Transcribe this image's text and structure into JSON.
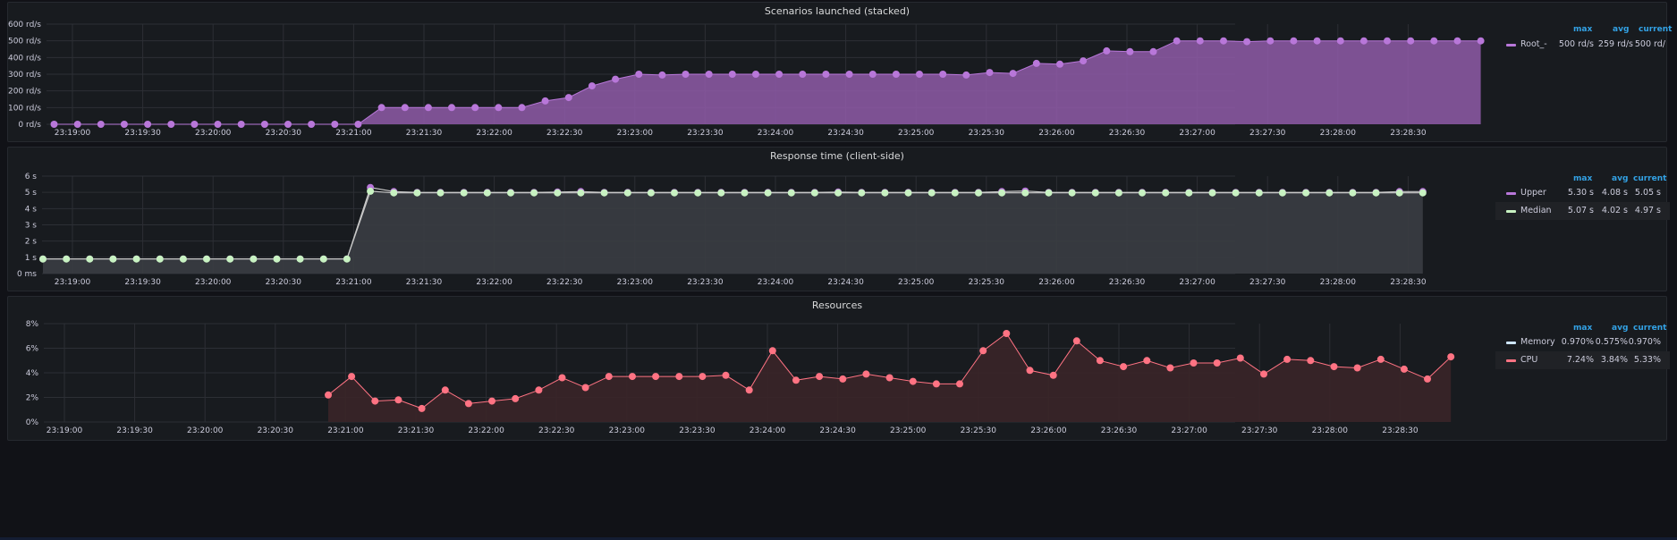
{
  "chart_data": [
    {
      "type": "area",
      "title": "Scenarios launched (stacked)",
      "y_ticks": [
        "0 rd/s",
        "100 rd/s",
        "200 rd/s",
        "300 rd/s",
        "400 rd/s",
        "500 rd/s",
        "600 rd/s"
      ],
      "ylim": [
        0,
        600
      ],
      "x_ticks": [
        "23:19:00",
        "23:19:30",
        "23:20:00",
        "23:20:30",
        "23:21:00",
        "23:21:30",
        "23:22:00",
        "23:22:30",
        "23:23:00",
        "23:23:30",
        "23:24:00",
        "23:24:30",
        "23:25:00",
        "23:25:30",
        "23:26:00",
        "23:26:30",
        "23:27:00",
        "23:27:30",
        "23:28:00",
        "23:28:30"
      ],
      "x_start": "23:18:45",
      "x_step_seconds": 10,
      "legend_headers": {
        "max": "max",
        "avg": "avg",
        "current": "current"
      },
      "series": [
        {
          "name": "Root_-",
          "color": "#b877d9",
          "fill": "#8f5aa8",
          "stats": {
            "max": "500 rd/s",
            "avg": "259 rd/s",
            "current": "500 rd/"
          },
          "values": [
            0,
            0,
            0,
            0,
            0,
            0,
            0,
            0,
            0,
            0,
            0,
            0,
            0,
            0,
            100,
            100,
            100,
            100,
            100,
            100,
            100,
            140,
            160,
            230,
            270,
            300,
            295,
            300,
            300,
            300,
            300,
            300,
            300,
            300,
            300,
            300,
            300,
            300,
            300,
            295,
            310,
            305,
            365,
            360,
            380,
            440,
            435,
            435,
            500,
            500,
            500,
            495,
            500,
            500,
            500,
            500,
            500,
            500,
            500,
            500,
            500,
            500
          ]
        }
      ]
    },
    {
      "type": "line",
      "title": "Response time (client-side)",
      "y_ticks": [
        "0 ms",
        "1 s",
        "2 s",
        "3 s",
        "4 s",
        "5 s",
        "6 s"
      ],
      "ylim": [
        0,
        6
      ],
      "x_ticks": [
        "23:19:00",
        "23:19:30",
        "23:20:00",
        "23:20:30",
        "23:21:00",
        "23:21:30",
        "23:22:00",
        "23:22:30",
        "23:23:00",
        "23:23:30",
        "23:24:00",
        "23:24:30",
        "23:25:00",
        "23:25:30",
        "23:26:00",
        "23:26:30",
        "23:27:00",
        "23:27:30",
        "23:28:00",
        "23:28:30"
      ],
      "legend_headers": {
        "max": "max",
        "avg": "avg",
        "current": "current"
      },
      "series": [
        {
          "name": "Upper",
          "color": "#b877d9",
          "stats": {
            "max": "5.30 s",
            "avg": "4.08 s",
            "current": "5.05 s"
          },
          "values": [
            0.9,
            0.9,
            0.9,
            0.9,
            0.9,
            0.9,
            0.9,
            0.9,
            0.9,
            0.9,
            0.9,
            0.9,
            0.9,
            0.9,
            5.3,
            5.05,
            5.0,
            5.0,
            5.0,
            5.0,
            5.0,
            5.0,
            5.02,
            5.05,
            5.0,
            5.0,
            5.0,
            5.0,
            5.0,
            5.0,
            5.0,
            5.0,
            5.0,
            5.0,
            5.02,
            5.0,
            5.0,
            5.0,
            5.0,
            5.0,
            5.0,
            5.05,
            5.08,
            5.0,
            5.0,
            5.0,
            5.0,
            5.0,
            5.0,
            5.0,
            5.0,
            5.0,
            5.0,
            5.0,
            5.0,
            5.0,
            5.0,
            5.0,
            5.05,
            5.05
          ]
        },
        {
          "name": "Median",
          "color": "#c8f2c2",
          "stats": {
            "max": "5.07 s",
            "avg": "4.02 s",
            "current": "4.97 s"
          },
          "values": [
            0.9,
            0.9,
            0.9,
            0.9,
            0.9,
            0.9,
            0.9,
            0.9,
            0.9,
            0.9,
            0.9,
            0.9,
            0.9,
            0.9,
            5.07,
            4.97,
            4.97,
            4.97,
            4.97,
            4.97,
            4.97,
            4.97,
            4.97,
            4.97,
            4.97,
            4.97,
            4.97,
            4.97,
            4.97,
            4.97,
            4.97,
            4.97,
            4.97,
            4.97,
            4.97,
            4.97,
            4.97,
            4.97,
            4.97,
            4.97,
            4.97,
            4.97,
            4.97,
            4.97,
            4.97,
            4.97,
            4.97,
            4.97,
            4.97,
            4.97,
            4.97,
            4.97,
            4.97,
            4.97,
            4.97,
            4.97,
            4.97,
            4.97,
            4.97,
            4.97
          ]
        }
      ]
    },
    {
      "type": "line",
      "title": "Resources",
      "y_ticks": [
        "0%",
        "2%",
        "4%",
        "6%",
        "8%"
      ],
      "ylim": [
        0,
        8
      ],
      "x_ticks": [
        "23:19:00",
        "23:19:30",
        "23:20:00",
        "23:20:30",
        "23:21:00",
        "23:21:30",
        "23:22:00",
        "23:22:30",
        "23:23:00",
        "23:23:30",
        "23:24:00",
        "23:24:30",
        "23:25:00",
        "23:25:30",
        "23:26:00",
        "23:26:30",
        "23:27:00",
        "23:27:30",
        "23:28:00",
        "23:28:30"
      ],
      "legend_headers": {
        "max": "max",
        "avg": "avg",
        "current": "current"
      },
      "series": [
        {
          "name": "Memory",
          "color": "#cde5ff",
          "stats": {
            "max": "0.970%",
            "avg": "0.575%",
            "current": "0.970%"
          },
          "values": []
        },
        {
          "name": "CPU",
          "color": "#ff7383",
          "fill": "#3a2528",
          "stats": {
            "max": "7.24%",
            "avg": "3.84%",
            "current": "5.33%"
          },
          "values": [
            2.2,
            3.7,
            1.7,
            1.8,
            1.1,
            2.6,
            1.5,
            1.7,
            1.9,
            2.6,
            3.6,
            2.8,
            3.7,
            3.7,
            3.7,
            3.7,
            3.7,
            3.8,
            2.6,
            5.8,
            3.4,
            3.7,
            3.5,
            3.9,
            3.6,
            3.3,
            3.1,
            3.1,
            5.8,
            7.2,
            4.2,
            3.8,
            6.6,
            5.0,
            4.5,
            5.0,
            4.4,
            4.8,
            4.8,
            5.2,
            3.9,
            5.1,
            5.0,
            4.5,
            4.4,
            5.1,
            4.3,
            3.5,
            5.3
          ]
        }
      ]
    }
  ]
}
